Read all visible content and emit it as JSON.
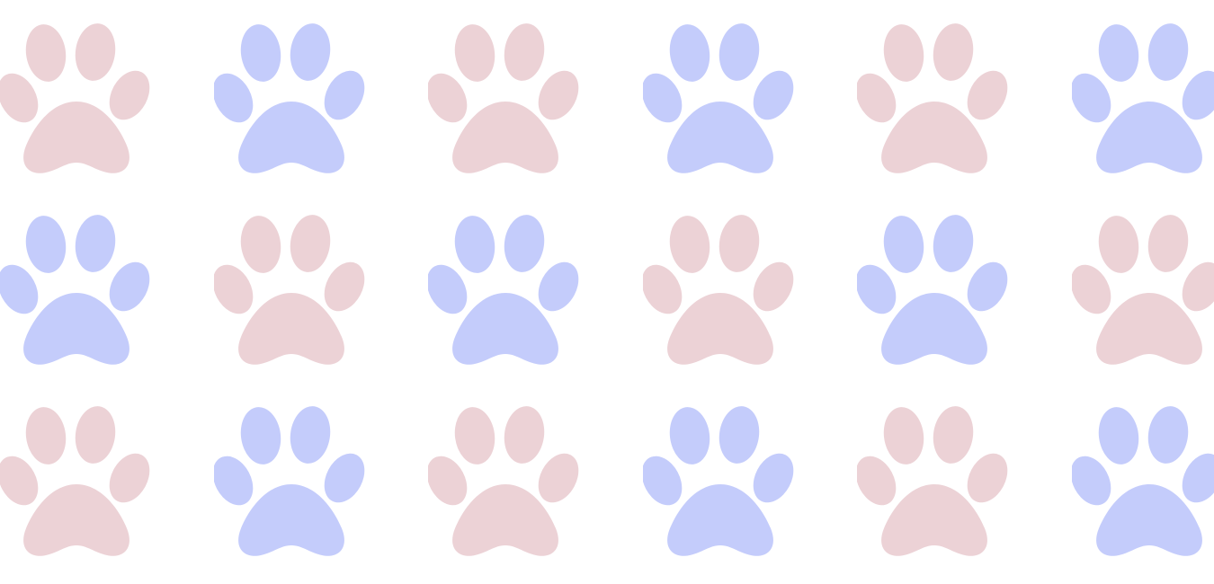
{
  "background_color": "#ffffff",
  "colors": {
    "pink": "#ecd2d6",
    "blue": "#c4ccfb"
  },
  "icon": "paw-print-icon",
  "grid": {
    "rows": [
      [
        "pink",
        "blue",
        "pink",
        "blue",
        "pink",
        "blue"
      ],
      [
        "blue",
        "pink",
        "blue",
        "pink",
        "blue",
        "pink"
      ],
      [
        "pink",
        "blue",
        "pink",
        "blue",
        "pink",
        "blue"
      ]
    ]
  }
}
